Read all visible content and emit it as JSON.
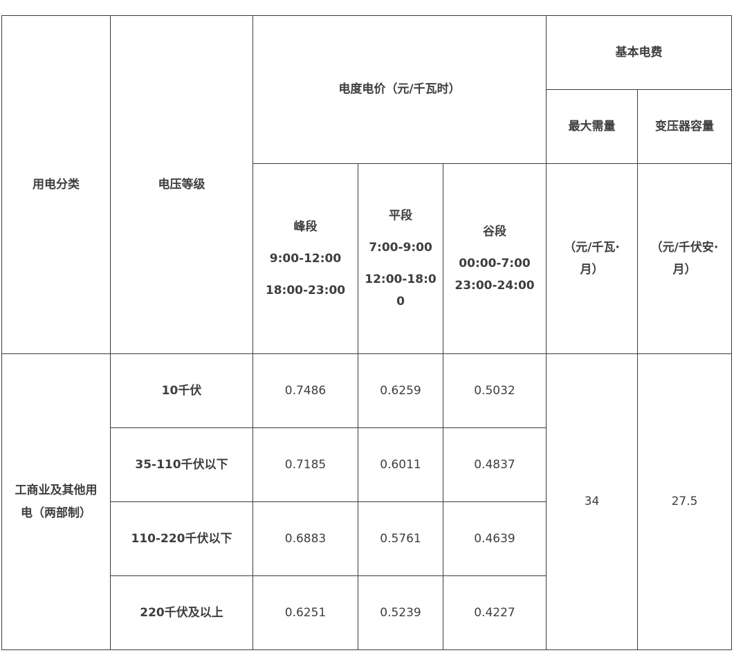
{
  "headers": {
    "category": "用电分类",
    "voltage": "电压等级",
    "energy_price": "电度电价（元/千瓦时）",
    "basic_fee": "基本电费",
    "max_demand": "最大需量",
    "transformer": "变压器容量",
    "peak": {
      "label": "峰段",
      "times": [
        "9:00-12:00",
        "18:00-23:00"
      ]
    },
    "flat": {
      "label": "平段",
      "times": [
        "7:00-9:00",
        "12:00-18:0",
        "0"
      ]
    },
    "valley": {
      "label": "谷段",
      "times": [
        "00:00-7:00",
        "23:00-24:00"
      ]
    },
    "max_demand_unit": [
      "（元/千瓦·",
      "月）"
    ],
    "transformer_unit": [
      "（元/千伏安·",
      "月）"
    ]
  },
  "category_name": [
    "工商业及其他用",
    "电（两部制）"
  ],
  "rows": [
    {
      "voltage": "10千伏",
      "peak": "0.7486",
      "flat": "0.6259",
      "valley": "0.5032"
    },
    {
      "voltage": "35-110千伏以下",
      "peak": "0.7185",
      "flat": "0.6011",
      "valley": "0.4837"
    },
    {
      "voltage": "110-220千伏以下",
      "peak": "0.6883",
      "flat": "0.5761",
      "valley": "0.4639"
    },
    {
      "voltage": "220千伏及以上",
      "peak": "0.6251",
      "flat": "0.5239",
      "valley": "0.4227"
    }
  ],
  "max_demand_value": "34",
  "transformer_value": "27.5"
}
